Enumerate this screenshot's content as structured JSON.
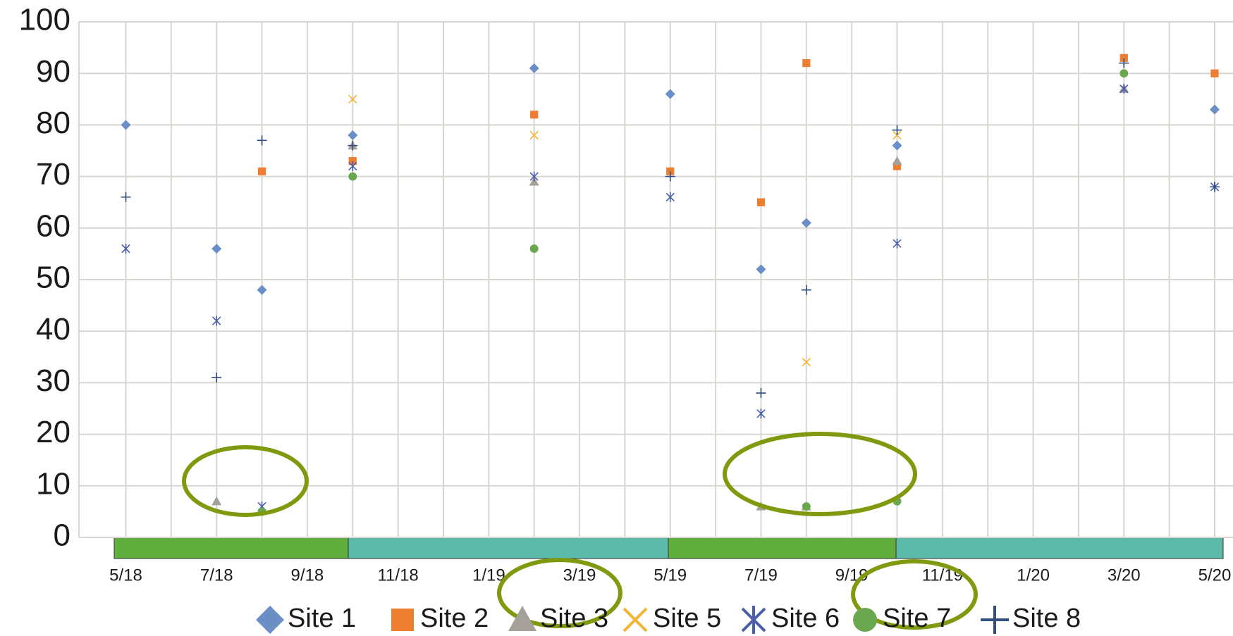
{
  "chart_data": {
    "type": "scatter",
    "categories": [
      "5/18",
      null,
      "7/18",
      null,
      "9/18",
      null,
      "11/18",
      null,
      "1/19",
      null,
      "3/19",
      null,
      "5/19",
      null,
      "7/19",
      null,
      "9/19",
      null,
      "11/19",
      null,
      "1/20",
      null,
      "3/20",
      null,
      "5/20"
    ],
    "ylim": [
      0,
      100
    ],
    "yticks": [
      0,
      10,
      20,
      30,
      40,
      50,
      60,
      70,
      80,
      90,
      100
    ],
    "grid": true,
    "series": [
      {
        "name": "Site 1",
        "color": "#6a8ec6",
        "marker": "diamond",
        "values": [
          80,
          null,
          56,
          48,
          null,
          78,
          null,
          null,
          null,
          91,
          null,
          null,
          86,
          null,
          52,
          61,
          null,
          76,
          null,
          null,
          null,
          null,
          null,
          null,
          83
        ]
      },
      {
        "name": "Site 2",
        "color": "#ed7d31",
        "marker": "square",
        "values": [
          null,
          null,
          null,
          71,
          null,
          73,
          null,
          null,
          null,
          82,
          null,
          null,
          71,
          null,
          65,
          92,
          null,
          72,
          null,
          null,
          null,
          null,
          93,
          null,
          90
        ]
      },
      {
        "name": "Site 3",
        "color": "#a5a09a",
        "marker": "triangle",
        "values": [
          null,
          null,
          7,
          null,
          null,
          76,
          null,
          null,
          null,
          69,
          null,
          null,
          null,
          null,
          6,
          6,
          null,
          73,
          null,
          null,
          null,
          null,
          87,
          null,
          null
        ]
      },
      {
        "name": "Site 5",
        "color": "#f5b335",
        "marker": "x",
        "values": [
          null,
          null,
          null,
          null,
          null,
          85,
          null,
          null,
          null,
          78,
          null,
          null,
          null,
          null,
          null,
          34,
          null,
          78,
          null,
          null,
          null,
          null,
          null,
          null,
          null
        ]
      },
      {
        "name": "Site 6",
        "color": "#4a5fa8",
        "marker": "asterisk",
        "values": [
          56,
          null,
          42,
          6,
          null,
          72,
          null,
          null,
          null,
          70,
          null,
          null,
          66,
          null,
          24,
          null,
          null,
          57,
          null,
          null,
          null,
          null,
          87,
          null,
          68
        ]
      },
      {
        "name": "Site 7",
        "color": "#6aa84f",
        "marker": "circle",
        "values": [
          null,
          null,
          null,
          5,
          null,
          70,
          null,
          null,
          null,
          56,
          null,
          null,
          null,
          null,
          null,
          6,
          null,
          7,
          null,
          null,
          null,
          null,
          90,
          null,
          null
        ]
      },
      {
        "name": "Site 8",
        "color": "#2f4f7f",
        "marker": "plus",
        "values": [
          66,
          null,
          31,
          77,
          null,
          76,
          null,
          null,
          null,
          null,
          null,
          null,
          70,
          null,
          28,
          48,
          null,
          79,
          null,
          null,
          null,
          null,
          92,
          null,
          68
        ]
      }
    ]
  }
}
